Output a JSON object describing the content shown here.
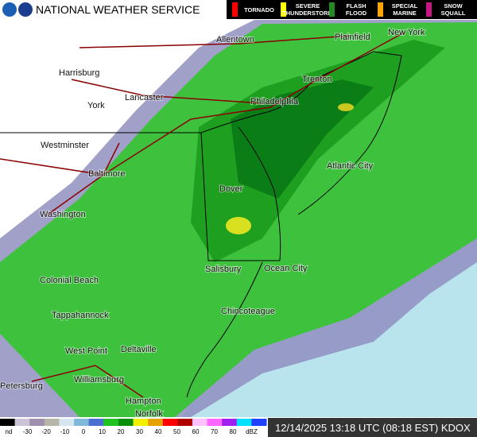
{
  "header": {
    "title": "NATIONAL WEATHER SERVICE",
    "warnings": [
      {
        "lines": [
          "TORNADO"
        ],
        "color": "#ff0000"
      },
      {
        "lines": [
          "SEVERE",
          "THUNDERSTORM"
        ],
        "color": "#ffff00"
      },
      {
        "lines": [
          "FLASH",
          "FLOOD"
        ],
        "color": "#228b22"
      },
      {
        "lines": [
          "SPECIAL",
          "MARINE"
        ],
        "color": "#ffa500"
      },
      {
        "lines": [
          "SNOW",
          "SQUALL"
        ],
        "color": "#c71585"
      }
    ]
  },
  "cities": [
    "Allentown",
    "Plainfield",
    "New York",
    "Harrisburg",
    "Trenton",
    "York",
    "Lancaster",
    "Philadelphia",
    "Westminster",
    "Atlantic City",
    "Baltimore",
    "Dover",
    "Washington",
    "Salisbury",
    "Ocean City",
    "Colonial Beach",
    "Chincoteague",
    "Tappahannock",
    "West Point",
    "Deltaville",
    "Williamsburg",
    "Petersburg",
    "Hampton",
    "Norfolk"
  ],
  "scale": {
    "labels": [
      "nd",
      -30,
      -20,
      -10,
      0,
      10,
      20,
      30,
      40,
      50,
      60,
      70,
      80
    ],
    "unit": "dBZ",
    "colors": [
      "#000000",
      "#cbc3d6",
      "#9e8fae",
      "#b5b5a8",
      "#d6e6f0",
      "#7fb8d8",
      "#4a6fd0",
      "#1fc31f",
      "#0a8f0a",
      "#f0f000",
      "#e6a200",
      "#ff0000",
      "#b00000",
      "#ffc0ff",
      "#ff66ff",
      "#a020f0",
      "#00e0ff",
      "#2040ff"
    ]
  },
  "timestamp": "12/14/2025 13:18 UTC (08:18 EST) KDOX"
}
